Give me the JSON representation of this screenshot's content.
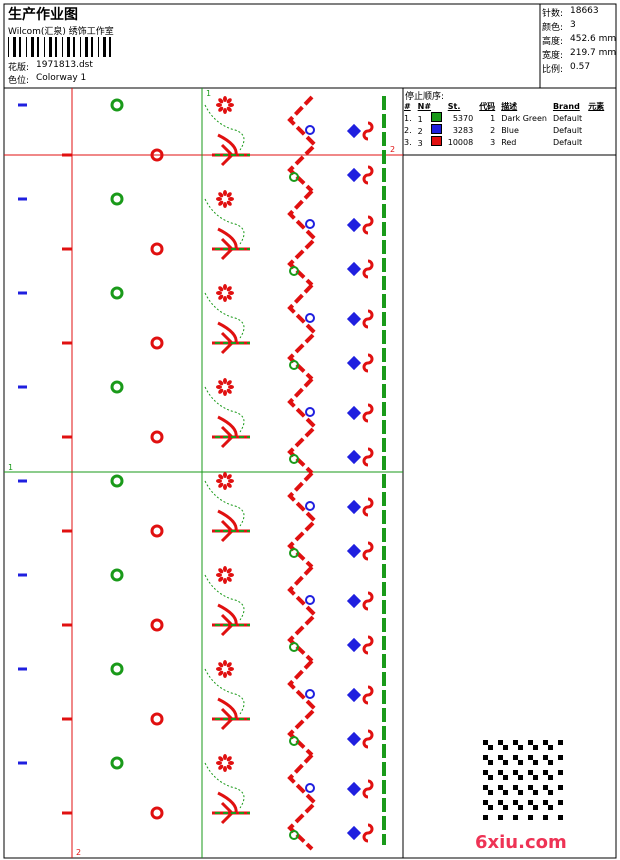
{
  "header": {
    "title": "生产作业图",
    "studio": "Wilcom(汇泉) 绣饰工作室",
    "fields": [
      {
        "label": "花版:",
        "value": "1971813.dst"
      },
      {
        "label": "色位:",
        "value": "Colorway 1"
      }
    ]
  },
  "stats": [
    {
      "label": "针数:",
      "value": "18663"
    },
    {
      "label": "颜色:",
      "value": "3"
    },
    {
      "label": "高度:",
      "value": "452.6 mm"
    },
    {
      "label": "宽度:",
      "value": "219.7 mm"
    },
    {
      "label": "比例:",
      "value": "0.57"
    }
  ],
  "stop_sequence": {
    "title": "停止顺序:",
    "columns": [
      "#",
      "N#",
      "St.",
      "代码",
      "描述",
      "Brand",
      "元素"
    ],
    "rows": [
      {
        "index": "1.",
        "n": "1",
        "color": "#1a9a1a",
        "stitches": "5370",
        "code": "1",
        "description": "Dark Green",
        "brand": "Default"
      },
      {
        "index": "2.",
        "n": "2",
        "color": "#1f1fdf",
        "stitches": "3283",
        "code": "2",
        "description": "Blue",
        "brand": "Default"
      },
      {
        "index": "3.",
        "n": "3",
        "color": "#e01010",
        "stitches": "10008",
        "code": "3",
        "description": "Red",
        "brand": "Default"
      }
    ]
  },
  "guides": {
    "green_v": "1",
    "red_h": "2",
    "green_h": "1",
    "red_v": "2"
  },
  "watermark": "6xiu.com"
}
